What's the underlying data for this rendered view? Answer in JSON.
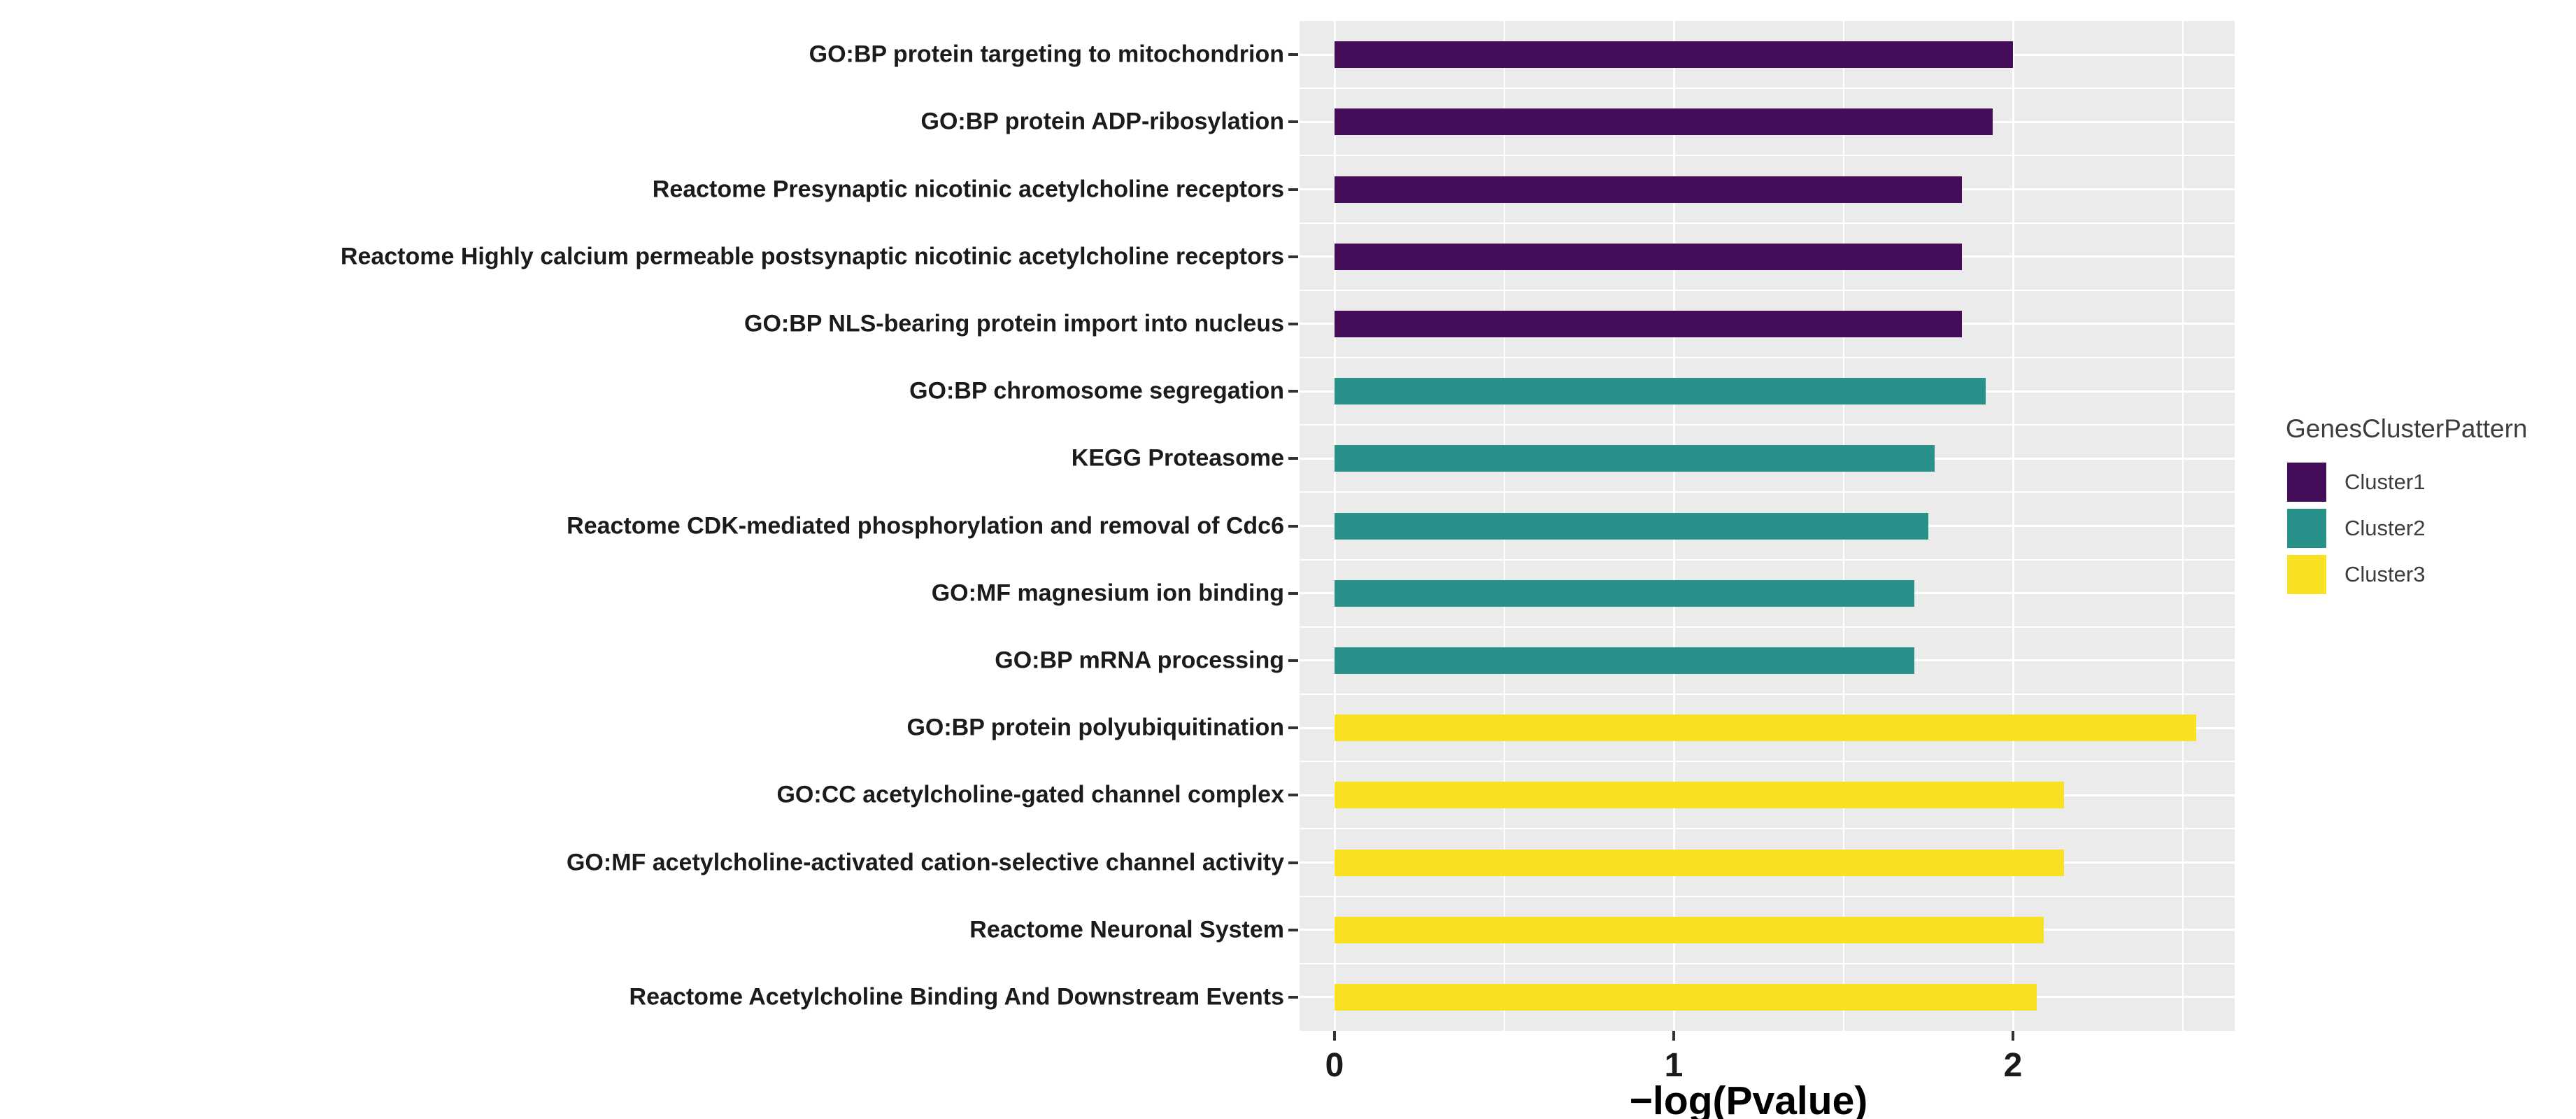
{
  "chart_data": {
    "type": "bar",
    "orientation": "horizontal",
    "title": "",
    "xlabel": "−log(Pvalue)",
    "ylabel": "",
    "x_ticks": [
      "0",
      "1",
      "2"
    ],
    "x_tick_values": [
      0,
      1,
      2
    ],
    "xlim": [
      -0.1,
      2.65
    ],
    "grid": "on",
    "minor_gridlines": [
      0.5,
      1.5,
      2.5
    ],
    "legend": {
      "title": "GenesClusterPattern",
      "position": "right"
    },
    "clusters": [
      {
        "name": "Cluster1",
        "color": "#450d59"
      },
      {
        "name": "Cluster2",
        "color": "#27918a"
      },
      {
        "name": "Cluster3",
        "color": "#f7e122"
      }
    ],
    "categories": [
      "GO:BP protein targeting to mitochondrion",
      "GO:BP protein ADP-ribosylation",
      "Reactome Presynaptic nicotinic acetylcholine receptors",
      "Reactome Highly calcium permeable postsynaptic nicotinic acetylcholine receptors",
      "GO:BP NLS-bearing protein import into nucleus",
      "GO:BP chromosome segregation",
      "KEGG Proteasome",
      "Reactome CDK-mediated phosphorylation and removal of Cdc6",
      "GO:MF magnesium ion binding",
      "GO:BP mRNA processing",
      "GO:BP protein polyubiquitination",
      "GO:CC acetylcholine-gated channel complex",
      "GO:MF acetylcholine-activated cation-selective channel activity",
      "Reactome Neuronal System",
      "Reactome Acetylcholine Binding And Downstream Events"
    ],
    "values": [
      2.0,
      1.94,
      1.85,
      1.85,
      1.85,
      1.92,
      1.77,
      1.75,
      1.71,
      1.71,
      2.54,
      2.15,
      2.15,
      2.09,
      2.07
    ],
    "bar_clusters": [
      "Cluster1",
      "Cluster1",
      "Cluster1",
      "Cluster1",
      "Cluster1",
      "Cluster2",
      "Cluster2",
      "Cluster2",
      "Cluster2",
      "Cluster2",
      "Cluster3",
      "Cluster3",
      "Cluster3",
      "Cluster3",
      "Cluster3"
    ]
  },
  "style": {
    "panel_bg": "#ebebeb",
    "grid_color": "#ffffff",
    "axis_text": "#1b1b1b",
    "legend_text": "#3d3d3d",
    "tick_color": "#333333"
  }
}
